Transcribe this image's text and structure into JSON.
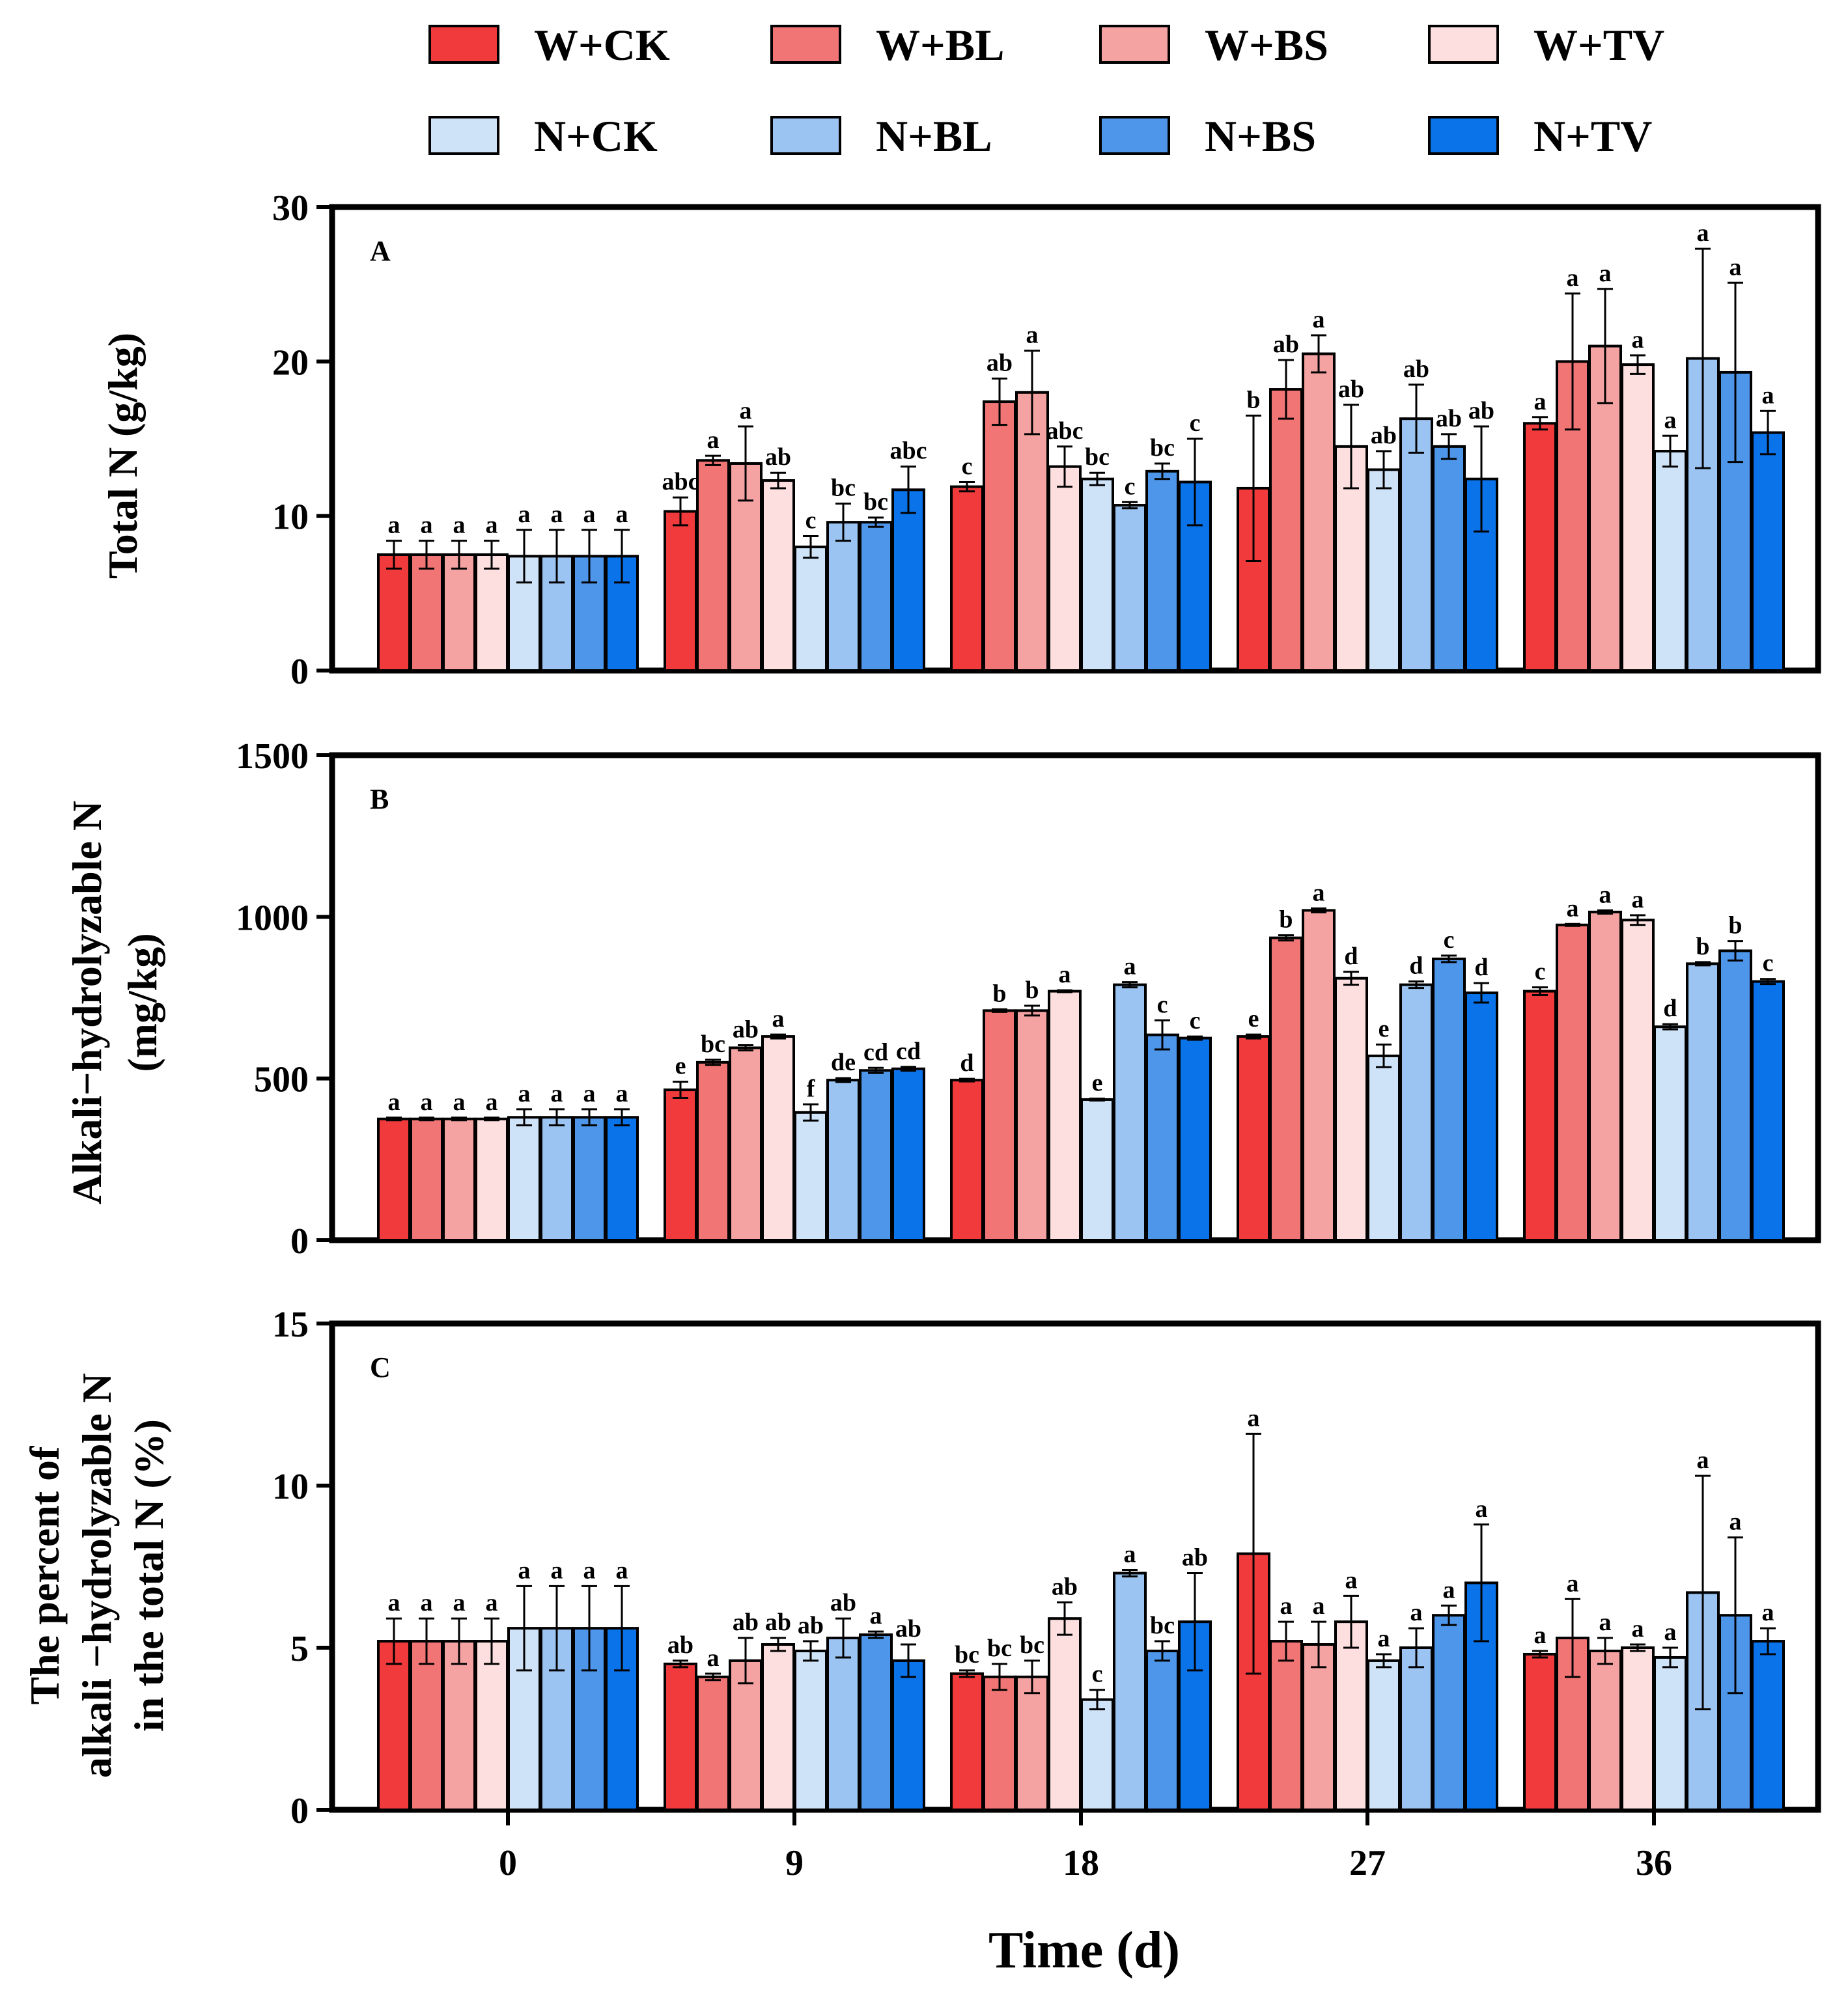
{
  "chart_data": {
    "type": "bar",
    "groups": [
      "0",
      "9",
      "18",
      "27",
      "36"
    ],
    "series_names": [
      "W+CK",
      "W+BL",
      "W+BS",
      "W+TV",
      "N+CK",
      "N+BL",
      "N+BS",
      "N+TV"
    ],
    "series_colors": [
      "#f03a3c",
      "#f27575",
      "#f4a3a2",
      "#fddfe0",
      "#cfe3f8",
      "#9cc4f2",
      "#4e96ea",
      "#0a73ea"
    ],
    "xlabel": "Time (d)",
    "panels": [
      {
        "tag": "A",
        "ylabel": [
          "Total N (g/kg)"
        ],
        "ylim": [
          0,
          30
        ],
        "yticks": [
          "0",
          "10",
          "20",
          "30"
        ],
        "values": [
          [
            7.5,
            7.5,
            7.5,
            7.5,
            7.4,
            7.4,
            7.4,
            7.4
          ],
          [
            10.3,
            13.6,
            13.4,
            12.3,
            8.0,
            9.6,
            9.6,
            11.7
          ],
          [
            11.9,
            17.4,
            18.0,
            13.2,
            12.4,
            10.7,
            12.9,
            12.2
          ],
          [
            11.8,
            18.2,
            20.5,
            14.5,
            13.0,
            16.3,
            14.5,
            12.4
          ],
          [
            16.0,
            20.0,
            21.0,
            19.8,
            14.2,
            20.2,
            19.3,
            15.4
          ]
        ],
        "errors": [
          [
            0.9,
            0.9,
            0.9,
            0.9,
            1.7,
            1.7,
            1.7,
            1.7
          ],
          [
            0.9,
            0.3,
            2.4,
            0.5,
            0.7,
            1.2,
            0.3,
            1.5
          ],
          [
            0.3,
            1.5,
            2.7,
            1.3,
            0.4,
            0.2,
            0.5,
            2.8
          ],
          [
            4.7,
            1.9,
            1.2,
            2.7,
            1.2,
            2.2,
            0.8,
            3.4
          ],
          [
            0.4,
            4.4,
            3.7,
            0.6,
            1.0,
            7.1,
            5.8,
            1.4
          ]
        ],
        "letters": [
          [
            "a",
            "a",
            "a",
            "a",
            "a",
            "a",
            "a",
            "a"
          ],
          [
            "abc",
            "a",
            "a",
            "ab",
            "c",
            "bc",
            "bc",
            "abc"
          ],
          [
            "c",
            "ab",
            "a",
            "abc",
            "bc",
            "c",
            "bc",
            "c"
          ],
          [
            "b",
            "ab",
            "a",
            "ab",
            "ab",
            "ab",
            "ab",
            "ab"
          ],
          [
            "a",
            "a",
            "a",
            "a",
            "a",
            "a",
            "a",
            "a"
          ]
        ]
      },
      {
        "tag": "B",
        "ylabel": [
          "Alkali−hydrolyzable N",
          "(mg/kg)"
        ],
        "ylim": [
          0,
          1500
        ],
        "yticks": [
          "0",
          "500",
          "1000",
          "1500"
        ],
        "values": [
          [
            375,
            375,
            375,
            375,
            380,
            380,
            380,
            380
          ],
          [
            465,
            550,
            595,
            630,
            395,
            495,
            525,
            530
          ],
          [
            495,
            710,
            710,
            770,
            435,
            790,
            635,
            625
          ],
          [
            630,
            935,
            1020,
            810,
            570,
            790,
            870,
            765
          ],
          [
            770,
            975,
            1015,
            990,
            660,
            855,
            895,
            800
          ]
        ],
        "errors": [
          [
            4,
            4,
            4,
            4,
            25,
            25,
            25,
            25
          ],
          [
            25,
            8,
            8,
            6,
            25,
            6,
            8,
            6
          ],
          [
            4,
            4,
            15,
            3,
            3,
            8,
            45,
            5
          ],
          [
            6,
            8,
            6,
            20,
            35,
            10,
            10,
            30
          ],
          [
            12,
            3,
            5,
            15,
            8,
            5,
            30,
            8
          ]
        ],
        "letters": [
          [
            "a",
            "a",
            "a",
            "a",
            "a",
            "a",
            "a",
            "a"
          ],
          [
            "e",
            "bc",
            "ab",
            "a",
            "f",
            "de",
            "cd",
            "cd"
          ],
          [
            "d",
            "b",
            "b",
            "a",
            "e",
            "a",
            "c",
            "c"
          ],
          [
            "e",
            "b",
            "a",
            "d",
            "e",
            "d",
            "c",
            "d"
          ],
          [
            "c",
            "a",
            "a",
            "a",
            "d",
            "b",
            "b",
            "c"
          ]
        ]
      },
      {
        "tag": "C",
        "ylabel": [
          "The percent of",
          "alkali −hydrolyzable N",
          "in the total N (%)"
        ],
        "ylim": [
          0,
          15
        ],
        "yticks": [
          "0",
          "5",
          "10",
          "15"
        ],
        "values": [
          [
            5.2,
            5.2,
            5.2,
            5.2,
            5.6,
            5.6,
            5.6,
            5.6
          ],
          [
            4.5,
            4.1,
            4.6,
            5.1,
            4.9,
            5.3,
            5.4,
            4.6
          ],
          [
            4.2,
            4.1,
            4.1,
            5.9,
            3.4,
            7.3,
            4.9,
            5.8
          ],
          [
            7.9,
            5.2,
            5.1,
            5.8,
            4.6,
            5.0,
            6.0,
            7.0
          ],
          [
            4.8,
            5.3,
            4.9,
            5.0,
            4.7,
            6.7,
            6.0,
            5.2
          ]
        ],
        "errors": [
          [
            0.7,
            0.7,
            0.7,
            0.7,
            1.3,
            1.3,
            1.3,
            1.3
          ],
          [
            0.1,
            0.1,
            0.7,
            0.2,
            0.3,
            0.6,
            0.1,
            0.5
          ],
          [
            0.1,
            0.4,
            0.5,
            0.5,
            0.3,
            0.1,
            0.3,
            1.5
          ],
          [
            3.7,
            0.6,
            0.7,
            0.8,
            0.2,
            0.6,
            0.3,
            1.8
          ],
          [
            0.1,
            1.2,
            0.4,
            0.1,
            0.3,
            3.6,
            2.4,
            0.4
          ]
        ],
        "letters": [
          [
            "a",
            "a",
            "a",
            "a",
            "a",
            "a",
            "a",
            "a"
          ],
          [
            "ab",
            "a",
            "ab",
            "ab",
            "ab",
            "ab",
            "a",
            "ab"
          ],
          [
            "bc",
            "bc",
            "bc",
            "ab",
            "c",
            "a",
            "bc",
            "ab"
          ],
          [
            "a",
            "a",
            "a",
            "a",
            "a",
            "a",
            "a",
            "a"
          ],
          [
            "a",
            "a",
            "a",
            "a",
            "a",
            "a",
            "a",
            "a"
          ]
        ]
      }
    ]
  }
}
